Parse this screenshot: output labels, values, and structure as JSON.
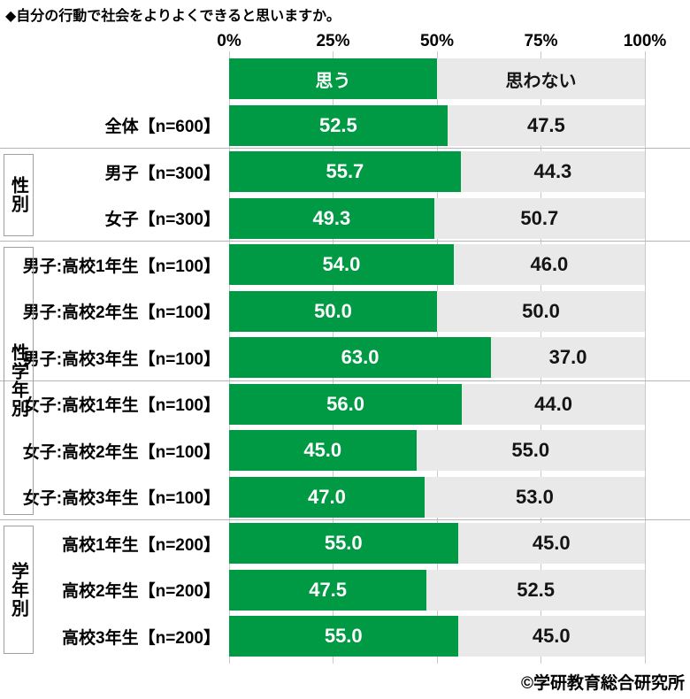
{
  "title": "◆自分の行動で社会をよりよくできると思いますか。",
  "footer": "©学研教育総合研究所",
  "legend": {
    "yes_label": "思う",
    "no_label": "思わない"
  },
  "colors": {
    "yes": "#009944",
    "no": "#e9e9e9",
    "gridline": "#c9c9c9",
    "separator": "#b5b5b5"
  },
  "groups": [
    {
      "name": "sex",
      "label": "性別",
      "start_row": 1,
      "end_row": 2
    },
    {
      "name": "sex-grade",
      "label": "性学年別",
      "start_row": 3,
      "end_row": 8
    },
    {
      "name": "grade",
      "label": "学年別",
      "start_row": 9,
      "end_row": 11
    }
  ],
  "separators_after_rows": [
    0,
    2,
    5,
    8
  ],
  "chart_data": {
    "type": "bar",
    "orientation": "horizontal",
    "stacked": true,
    "title": "◆自分の行動で社会をよりよくできると思いますか。",
    "x_ticks": [
      "0%",
      "25%",
      "50%",
      "75%",
      "100%"
    ],
    "xlim": [
      0,
      100
    ],
    "grid": true,
    "legend_position": "top-bar",
    "value_label_decimals": 1,
    "categories": [
      "全体【n=600】",
      "男子【n=300】",
      "女子【n=300】",
      "男子:高校1年生【n=100】",
      "男子:高校2年生【n=100】",
      "男子:高校3年生【n=100】",
      "女子:高校1年生【n=100】",
      "女子:高校2年生【n=100】",
      "女子:高校3年生【n=100】",
      "高校1年生【n=200】",
      "高校2年生【n=200】",
      "高校3年生【n=200】"
    ],
    "series": [
      {
        "name": "思う",
        "color": "#009944",
        "values": [
          52.5,
          55.7,
          49.3,
          54.0,
          50.0,
          63.0,
          56.0,
          45.0,
          47.0,
          55.0,
          47.5,
          55.0
        ]
      },
      {
        "name": "思わない",
        "color": "#e9e9e9",
        "values": [
          47.5,
          44.3,
          50.7,
          46.0,
          50.0,
          37.0,
          44.0,
          55.0,
          53.0,
          45.0,
          52.5,
          45.0
        ]
      }
    ]
  }
}
